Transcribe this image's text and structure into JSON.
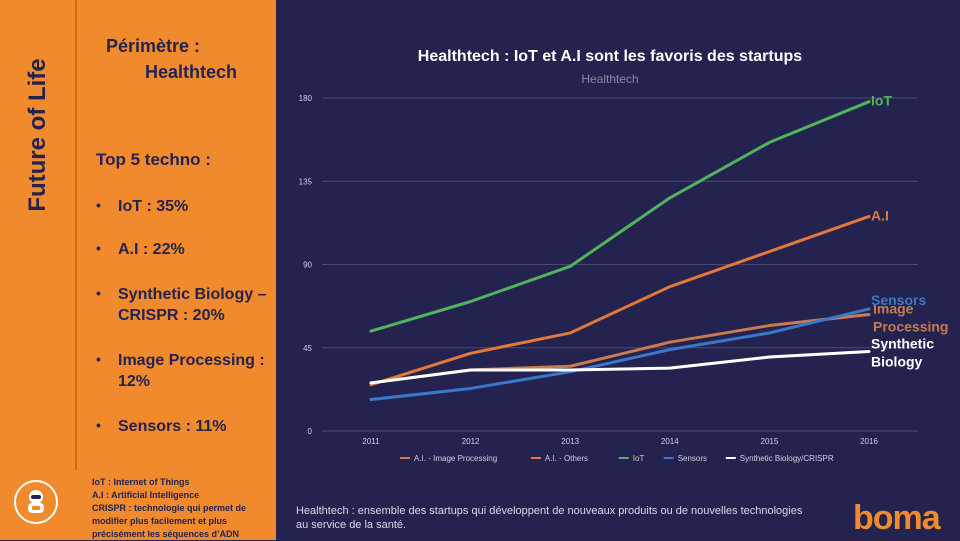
{
  "sidebar": {
    "brand": "Future of Life",
    "perimetre_label": "Périmètre :",
    "perimetre_value": "Healthtech",
    "top5_title": "Top 5 techno :",
    "top5": [
      "IoT : 35%",
      "A.I : 22%",
      "Synthetic Biology – CRISPR : 20%",
      "Image Processing : 12%",
      "Sensors : 11%"
    ],
    "glossary": [
      "IoT : Internet of Things",
      "A.I : Artificial Intelligence",
      "CRISPR : technologie qui permet de modifier plus facilement et plus précisément les séquences d’ADN"
    ]
  },
  "footer": {
    "note": "Healthtech : ensemble des startups qui développent de nouveaux produits ou de nouvelles technologies au service de la santé.",
    "logo_text": "boma"
  },
  "chart_data": {
    "type": "line",
    "title": "Healthtech : IoT et A.I sont les favoris des startups",
    "subtitle": "Healthtech",
    "x": [
      "2011",
      "2012",
      "2013",
      "2014",
      "2015",
      "2016"
    ],
    "ylim": [
      0,
      180
    ],
    "yticks": [
      0,
      45,
      90,
      135,
      180
    ],
    "series": [
      {
        "name": "A.I. - Image Processing",
        "label": "Image Processing",
        "color": "#c97a4e",
        "values": [
          26,
          33,
          35,
          48,
          57,
          63
        ]
      },
      {
        "name": "A.I. - Others",
        "label": "A.I",
        "color": "#e2783a",
        "values": [
          25,
          42,
          53,
          78,
          97,
          116
        ]
      },
      {
        "name": "IoT",
        "label": "IoT",
        "color": "#4fb45a",
        "values": [
          54,
          70,
          89,
          126,
          156,
          178
        ]
      },
      {
        "name": "Sensors",
        "label": "Sensors",
        "color": "#3a78c9",
        "values": [
          17,
          23,
          32,
          44,
          53,
          66
        ]
      },
      {
        "name": "Synthetic Biology/CRISPR",
        "label": "Synthetic Biology",
        "color": "#ffffff",
        "values": [
          26,
          33,
          33,
          34,
          40,
          43
        ]
      }
    ]
  },
  "colors": {
    "background": "#24234f",
    "sidebar": "#f08a2d",
    "text_dark": "#24234f"
  }
}
